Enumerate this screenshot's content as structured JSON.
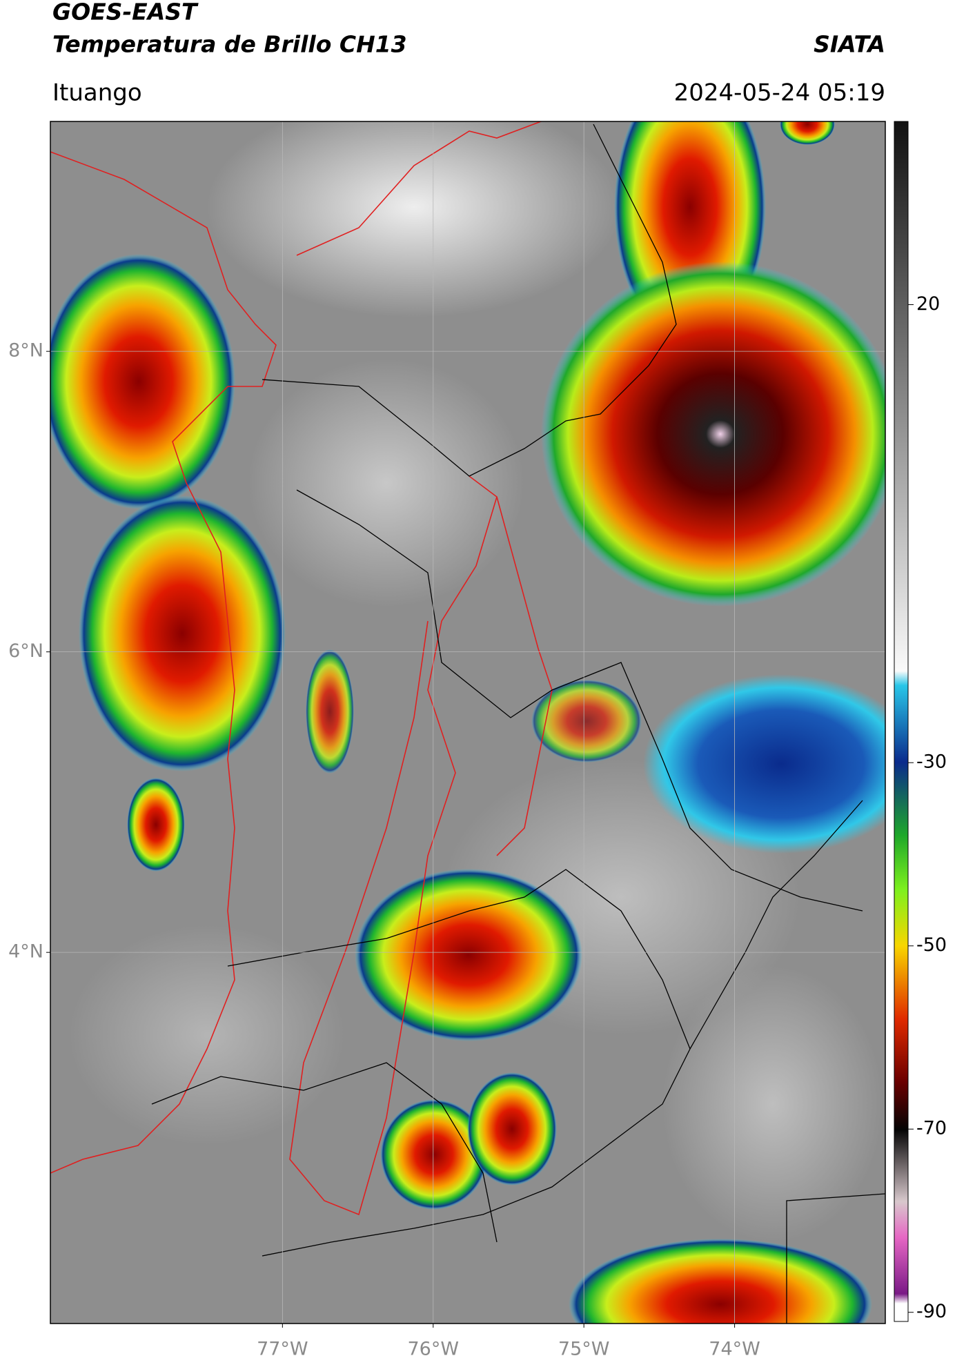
{
  "header": {
    "title": "GOES-EAST",
    "subtitle": "Temperatura de Brillo CH13",
    "source": "SIATA",
    "location": "Ituango",
    "timestamp": "2024-05-24 05:19"
  },
  "map": {
    "lonlim": [
      -78.54,
      -73.0
    ],
    "latlim": [
      1.53,
      9.53
    ],
    "lonticks": [
      {
        "value": -77,
        "label": "77°W"
      },
      {
        "value": -76,
        "label": "76°W"
      },
      {
        "value": -75,
        "label": "75°W"
      },
      {
        "value": -74,
        "label": "74°W"
      }
    ],
    "latticks": [
      {
        "value": 8,
        "label": "8°N"
      },
      {
        "value": 6,
        "label": "6°N"
      },
      {
        "value": 4,
        "label": "4°N"
      }
    ]
  },
  "colorbar": {
    "lim": [
      -91,
      40
    ],
    "ticks": [
      20,
      -30,
      -50,
      -70,
      -90
    ]
  }
}
